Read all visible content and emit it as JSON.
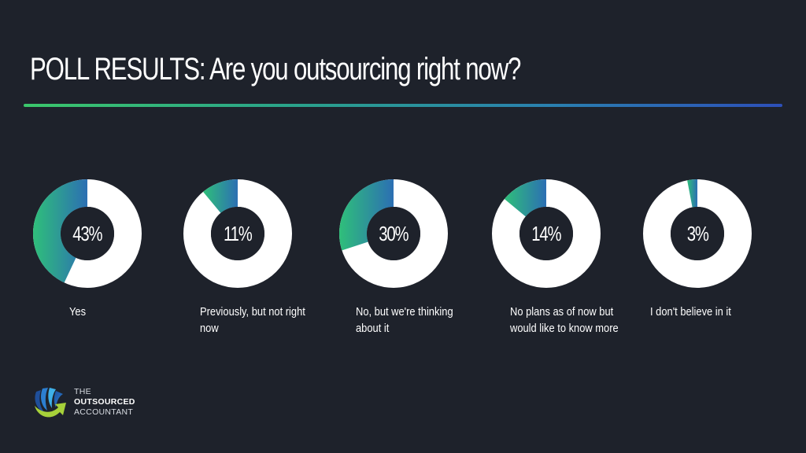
{
  "header": {
    "title": "POLL RESULTS: Are you outsourcing right now?"
  },
  "colors": {
    "background": "#1e222b",
    "ring_track": "#ffffff",
    "gradient_start": "#2fbf7a",
    "gradient_end": "#2c6fb3",
    "rule_start": "#3bc76b",
    "rule_end": "#2d4fb8"
  },
  "chart_data": {
    "type": "pie",
    "subtype": "donut",
    "title": "POLL RESULTS: Are you outsourcing right now?",
    "categories": [
      "Yes",
      "Previously, but not right now",
      "No, but we're thinking about it",
      "No plans as of now but would like to know more",
      "I don't believe in it"
    ],
    "values": [
      43,
      11,
      30,
      14,
      3
    ],
    "unit": "%",
    "layout": "five separate donuts, filled segment drawn counter-clockwise from 12 o'clock"
  },
  "polls": [
    {
      "pct": 43,
      "pct_label": "43%",
      "label": "Yes"
    },
    {
      "pct": 11,
      "pct_label": "11%",
      "label": "Previously, but not right now"
    },
    {
      "pct": 30,
      "pct_label": "30%",
      "label": "No, but we're thinking about it"
    },
    {
      "pct": 14,
      "pct_label": "14%",
      "label": "No plans as of now but would like to know more"
    },
    {
      "pct": 3,
      "pct_label": "3%",
      "label": "I don't believe in it"
    }
  ],
  "logo": {
    "line1": "THE",
    "line2": "OUTSOURCED",
    "line3": "ACCOUNTANT"
  }
}
